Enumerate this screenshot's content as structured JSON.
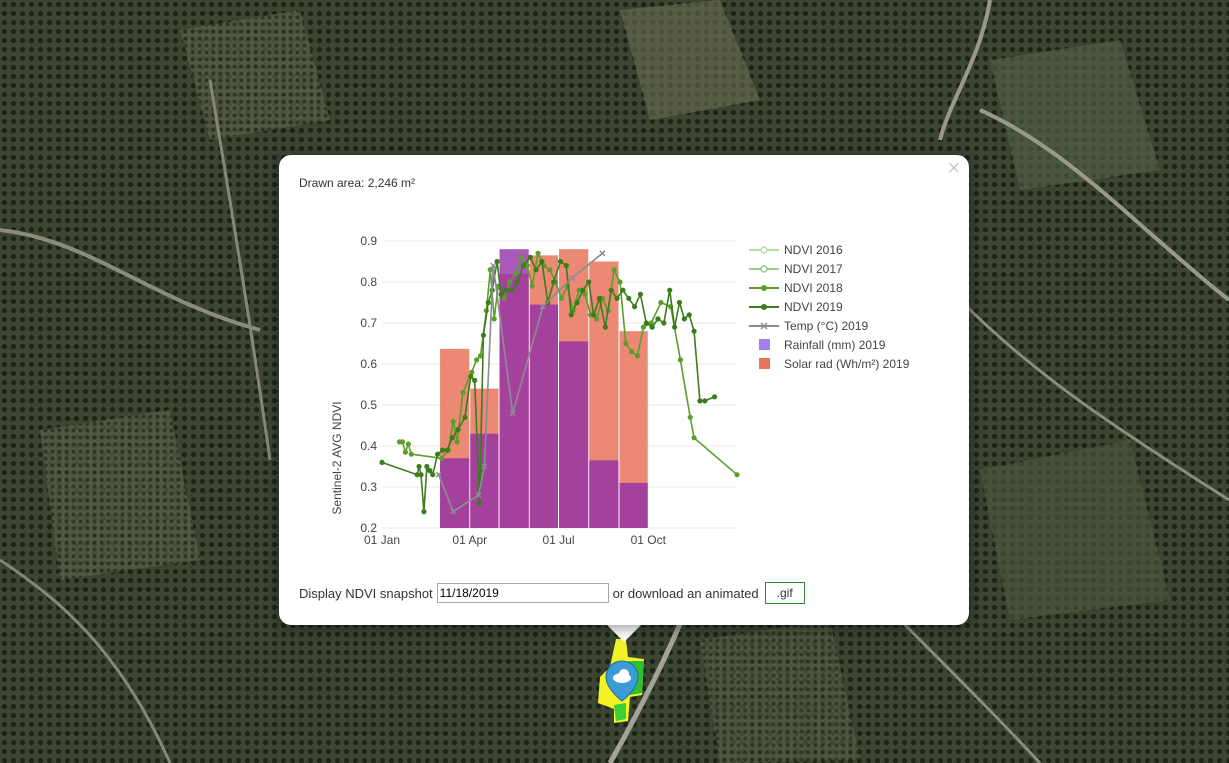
{
  "popup": {
    "close_icon": "×",
    "area_label": "Drawn area: 2,246 m²",
    "snapshot_label": "Display NDVI snapshot",
    "snapshot_date": "11/18/2019",
    "download_label": "or download an animated",
    "gif_button": ".gif"
  },
  "map": {
    "marker_icon": "cloud-pin-icon",
    "marker_color": "#3a9bd5",
    "field_colors": [
      "#f2f226",
      "#2fbf2f"
    ]
  },
  "chart_data": {
    "type": "line",
    "ylabel": "Sentinel-2 AVG NDVI",
    "ylim": [
      0.2,
      0.9
    ],
    "yticks": [
      "0.2",
      "0.3",
      "0.4",
      "0.5",
      "0.6",
      "0.7",
      "0.8",
      "0.9"
    ],
    "xlim": [
      "2019-01-01",
      "2019-12-31"
    ],
    "xticks": [
      {
        "date": "2019-01-01",
        "label": "01 Jan"
      },
      {
        "date": "2019-04-01",
        "label": "01 Apr"
      },
      {
        "date": "2019-07-01",
        "label": "01 Jul"
      },
      {
        "date": "2019-10-01",
        "label": "01 Oct"
      }
    ],
    "legend": [
      {
        "label": "NDVI 2016",
        "color": "#b2dfa8",
        "kind": "line-open"
      },
      {
        "label": "NDVI 2017",
        "color": "#9ccd84",
        "kind": "line-open"
      },
      {
        "label": "NDVI 2018",
        "color": "#5d9e2a",
        "kind": "line"
      },
      {
        "label": "NDVI 2019",
        "color": "#3c7c1d",
        "kind": "line"
      },
      {
        "label": "Temp (°C) 2019",
        "color": "#8c8c96",
        "kind": "line-x"
      },
      {
        "label": "Rainfall (mm) 2019",
        "color": "#a37ef0",
        "kind": "box"
      },
      {
        "label": "Solar rad (Wh/m²) 2019",
        "color": "#e8745c",
        "kind": "box"
      }
    ],
    "solar_bars": {
      "color": "#e8745c",
      "bins": [
        {
          "from": "2019-03-01",
          "to": "2019-04-01",
          "value": 0.637
        },
        {
          "from": "2019-04-01",
          "to": "2019-05-01",
          "value": 0.54
        },
        {
          "from": "2019-05-01",
          "to": "2019-06-01",
          "value": 0.82
        },
        {
          "from": "2019-06-01",
          "to": "2019-07-01",
          "value": 0.865
        },
        {
          "from": "2019-07-01",
          "to": "2019-08-01",
          "value": 0.88
        },
        {
          "from": "2019-08-01",
          "to": "2019-09-01",
          "value": 0.85
        },
        {
          "from": "2019-09-01",
          "to": "2019-10-01",
          "value": 0.68
        }
      ]
    },
    "rain_bars": {
      "color": "#9230a8",
      "bins": [
        {
          "from": "2019-03-01",
          "to": "2019-04-01",
          "value": 0.37
        },
        {
          "from": "2019-04-01",
          "to": "2019-05-01",
          "value": 0.43
        },
        {
          "from": "2019-05-01",
          "to": "2019-06-01",
          "value": 0.88
        },
        {
          "from": "2019-06-01",
          "to": "2019-07-01",
          "value": 0.745
        },
        {
          "from": "2019-07-01",
          "to": "2019-08-01",
          "value": 0.655
        },
        {
          "from": "2019-08-01",
          "to": "2019-09-01",
          "value": 0.365
        },
        {
          "from": "2019-09-01",
          "to": "2019-10-01",
          "value": 0.31
        }
      ]
    },
    "series": [
      {
        "name": "NDVI 2018",
        "color": "#5d9e2a",
        "points": [
          [
            "2019-01-19",
            0.41
          ],
          [
            "2019-01-22",
            0.41
          ],
          [
            "2019-01-25",
            0.385
          ],
          [
            "2019-01-28",
            0.405
          ],
          [
            "2019-01-31",
            0.38
          ],
          [
            "2019-03-03",
            0.37
          ],
          [
            "2019-03-10",
            0.39
          ],
          [
            "2019-03-15",
            0.46
          ],
          [
            "2019-03-19",
            0.41
          ],
          [
            "2019-03-25",
            0.53
          ],
          [
            "2019-04-03",
            0.58
          ],
          [
            "2019-04-08",
            0.61
          ],
          [
            "2019-04-12",
            0.62
          ],
          [
            "2019-04-18",
            0.73
          ],
          [
            "2019-04-22",
            0.83
          ],
          [
            "2019-04-26",
            0.71
          ],
          [
            "2019-04-30",
            0.79
          ],
          [
            "2019-05-06",
            0.76
          ],
          [
            "2019-05-12",
            0.8
          ],
          [
            "2019-05-18",
            0.82
          ],
          [
            "2019-05-24",
            0.86
          ],
          [
            "2019-05-30",
            0.84
          ],
          [
            "2019-06-04",
            0.79
          ],
          [
            "2019-06-10",
            0.87
          ],
          [
            "2019-06-16",
            0.84
          ],
          [
            "2019-06-22",
            0.83
          ],
          [
            "2019-06-28",
            0.8
          ],
          [
            "2019-07-04",
            0.76
          ],
          [
            "2019-07-10",
            0.79
          ],
          [
            "2019-07-16",
            0.73
          ],
          [
            "2019-07-22",
            0.78
          ],
          [
            "2019-07-28",
            0.77
          ],
          [
            "2019-08-03",
            0.72
          ],
          [
            "2019-08-09",
            0.71
          ],
          [
            "2019-08-15",
            0.76
          ],
          [
            "2019-08-21",
            0.73
          ],
          [
            "2019-08-27",
            0.83
          ],
          [
            "2019-09-02",
            0.8
          ],
          [
            "2019-09-08",
            0.65
          ],
          [
            "2019-09-14",
            0.63
          ],
          [
            "2019-09-20",
            0.62
          ],
          [
            "2019-09-26",
            0.69
          ],
          [
            "2019-10-04",
            0.7
          ],
          [
            "2019-10-14",
            0.75
          ],
          [
            "2019-10-24",
            0.74
          ],
          [
            "2019-11-03",
            0.61
          ],
          [
            "2019-11-13",
            0.47
          ],
          [
            "2019-11-17",
            0.42
          ],
          [
            "2019-12-31",
            0.33
          ]
        ]
      },
      {
        "name": "NDVI 2019",
        "color": "#3c7c1d",
        "points": [
          [
            "2019-01-01",
            0.36
          ],
          [
            "2019-02-06",
            0.33
          ],
          [
            "2019-02-08",
            0.35
          ],
          [
            "2019-02-10",
            0.33
          ],
          [
            "2019-02-13",
            0.24
          ],
          [
            "2019-02-16",
            0.35
          ],
          [
            "2019-02-19",
            0.34
          ],
          [
            "2019-02-22",
            0.33
          ],
          [
            "2019-02-27",
            0.38
          ],
          [
            "2019-03-04",
            0.39
          ],
          [
            "2019-03-09",
            0.39
          ],
          [
            "2019-03-14",
            0.42
          ],
          [
            "2019-03-20",
            0.44
          ],
          [
            "2019-03-27",
            0.47
          ],
          [
            "2019-04-02",
            0.57
          ],
          [
            "2019-04-06",
            0.56
          ],
          [
            "2019-04-11",
            0.26
          ],
          [
            "2019-04-15",
            0.67
          ],
          [
            "2019-04-20",
            0.75
          ],
          [
            "2019-04-24",
            0.78
          ],
          [
            "2019-04-29",
            0.85
          ],
          [
            "2019-05-03",
            0.77
          ],
          [
            "2019-05-08",
            0.78
          ],
          [
            "2019-05-14",
            0.78
          ],
          [
            "2019-05-20",
            0.8
          ],
          [
            "2019-05-26",
            0.84
          ],
          [
            "2019-06-02",
            0.86
          ],
          [
            "2019-06-08",
            0.83
          ],
          [
            "2019-06-14",
            0.85
          ],
          [
            "2019-06-20",
            0.75
          ],
          [
            "2019-06-26",
            0.8
          ],
          [
            "2019-07-03",
            0.85
          ],
          [
            "2019-07-09",
            0.84
          ],
          [
            "2019-07-14",
            0.72
          ],
          [
            "2019-07-20",
            0.75
          ],
          [
            "2019-07-26",
            0.78
          ],
          [
            "2019-08-01",
            0.8
          ],
          [
            "2019-08-06",
            0.72
          ],
          [
            "2019-08-12",
            0.76
          ],
          [
            "2019-08-18",
            0.69
          ],
          [
            "2019-08-24",
            0.78
          ],
          [
            "2019-08-30",
            0.76
          ],
          [
            "2019-09-05",
            0.78
          ],
          [
            "2019-09-11",
            0.76
          ],
          [
            "2019-09-17",
            0.74
          ],
          [
            "2019-09-23",
            0.77
          ],
          [
            "2019-09-29",
            0.7
          ],
          [
            "2019-10-05",
            0.69
          ],
          [
            "2019-10-11",
            0.71
          ],
          [
            "2019-10-17",
            0.7
          ],
          [
            "2019-10-23",
            0.78
          ],
          [
            "2019-10-28",
            0.69
          ],
          [
            "2019-11-02",
            0.75
          ],
          [
            "2019-11-07",
            0.71
          ],
          [
            "2019-11-12",
            0.72
          ],
          [
            "2019-11-17",
            0.68
          ],
          [
            "2019-11-23",
            0.51
          ],
          [
            "2019-11-28",
            0.51
          ],
          [
            "2019-12-08",
            0.52
          ]
        ]
      },
      {
        "name": "Temp (°C) 2019",
        "color": "#8c8c96",
        "points": [
          [
            "2019-02-28",
            0.33
          ],
          [
            "2019-03-15",
            0.24
          ],
          [
            "2019-04-10",
            0.28
          ],
          [
            "2019-04-16",
            0.35
          ],
          [
            "2019-04-25",
            0.84
          ],
          [
            "2019-05-15",
            0.48
          ],
          [
            "2019-06-15",
            0.74
          ],
          [
            "2019-07-15",
            0.81
          ],
          [
            "2019-08-15",
            0.87
          ]
        ]
      }
    ]
  }
}
